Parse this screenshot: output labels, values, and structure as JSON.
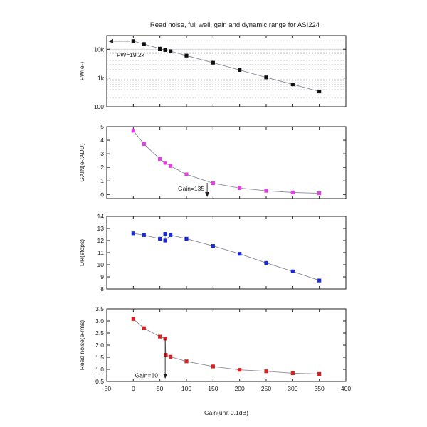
{
  "title": "Read noise, full well, gain and dynamic range for ASI224",
  "xlabel": "Gain(unit 0.1dB)",
  "colors": {
    "fw": "#111111",
    "gain": "#e040e0",
    "dr": "#1a2ad6",
    "rn": "#d62020",
    "line": "#8a8a9a"
  },
  "chart_data": [
    {
      "type": "line",
      "ylabel": "FW(e-)",
      "yscale": "log",
      "ylim": [
        100,
        30000
      ],
      "yticks": [
        100,
        1000,
        10000
      ],
      "ytick_labels": [
        "100",
        "1k",
        "10k"
      ],
      "xlim": [
        -50,
        400
      ],
      "grid": true,
      "x": [
        0,
        20,
        50,
        60,
        70,
        100,
        150,
        200,
        250,
        300,
        350
      ],
      "values": [
        19200,
        15200,
        10500,
        9400,
        8500,
        6000,
        3400,
        1900,
        1050,
        600,
        340
      ],
      "annotation": "FW=19.2k"
    },
    {
      "type": "line",
      "ylabel": "GAIN(e-/ADU)",
      "ylim": [
        -0.3,
        5
      ],
      "yticks": [
        0,
        1,
        2,
        3,
        4,
        5
      ],
      "ytick_labels": [
        "0",
        "1",
        "2",
        "3",
        "4",
        "5"
      ],
      "xlim": [
        -50,
        400
      ],
      "x": [
        0,
        20,
        50,
        60,
        70,
        100,
        150,
        200,
        250,
        300,
        350
      ],
      "values": [
        4.7,
        3.72,
        2.62,
        2.33,
        2.1,
        1.48,
        0.83,
        0.47,
        0.27,
        0.15,
        0.09
      ],
      "annotation": "Gain=135"
    },
    {
      "type": "line",
      "ylabel": "DR(stops)",
      "ylim": [
        8,
        14
      ],
      "yticks": [
        8,
        9,
        10,
        11,
        12,
        13,
        14
      ],
      "ytick_labels": [
        "8",
        "9",
        "10",
        "11",
        "12",
        "13",
        "14"
      ],
      "xlim": [
        -50,
        400
      ],
      "x": [
        0,
        20,
        50,
        60,
        60,
        70,
        100,
        150,
        200,
        250,
        300,
        350
      ],
      "values": [
        12.6,
        12.45,
        12.15,
        12.55,
        12.0,
        12.45,
        12.15,
        11.55,
        10.9,
        10.15,
        9.45,
        8.7
      ]
    },
    {
      "type": "line",
      "ylabel": "Read noise(e-rms)",
      "ylim": [
        0.5,
        3.5
      ],
      "yticks": [
        0.5,
        1.0,
        1.5,
        2.0,
        2.5,
        3.0,
        3.5
      ],
      "ytick_labels": [
        "0.5",
        "1.0",
        "1.5",
        "2.0",
        "2.5",
        "3.0",
        "3.5"
      ],
      "xlim": [
        -50,
        400
      ],
      "xticks": [
        -50,
        0,
        50,
        100,
        150,
        200,
        250,
        300,
        350,
        400
      ],
      "xtick_labels": [
        "-50",
        "0",
        "50",
        "100",
        "150",
        "200",
        "250",
        "300",
        "350",
        "400"
      ],
      "x": [
        0,
        20,
        50,
        60,
        61,
        70,
        100,
        150,
        200,
        250,
        300,
        350
      ],
      "values": [
        3.08,
        2.7,
        2.35,
        2.27,
        1.6,
        1.52,
        1.33,
        1.12,
        0.98,
        0.92,
        0.84,
        0.81
      ],
      "annotation": "Gain=60"
    }
  ]
}
